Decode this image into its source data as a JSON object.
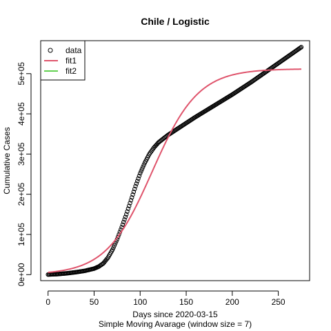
{
  "chart_data": {
    "type": "scatter",
    "title": "Chile / Logistic",
    "xlabel": "Days since 2020-03-15",
    "xlabel_sub": "Simple Moving Avarage (window size = 7)",
    "ylabel": "Cumulative Cases",
    "xlim": [
      -8,
      284
    ],
    "ylim": [
      -15000,
      582000
    ],
    "x_ticks": [
      0,
      50,
      100,
      150,
      200,
      250
    ],
    "x_tick_labels": [
      "0",
      "50",
      "100",
      "150",
      "200",
      "250"
    ],
    "y_ticks": [
      0,
      100000,
      200000,
      300000,
      400000,
      500000
    ],
    "y_tick_labels": [
      "0e+00",
      "1e+05",
      "2e+05",
      "3e+05",
      "4e+05",
      "5e+05"
    ],
    "legend_position": "top-left",
    "legend": [
      {
        "label": "data",
        "style": "circle",
        "color": "#000000"
      },
      {
        "label": "fit1",
        "style": "line",
        "color": "#DF536B"
      },
      {
        "label": "fit2",
        "style": "line",
        "color": "#61D04F"
      }
    ],
    "data_points": {
      "name": "data",
      "x": [
        0,
        10,
        20,
        30,
        40,
        50,
        55,
        60,
        65,
        70,
        75,
        80,
        85,
        90,
        95,
        100,
        105,
        110,
        115,
        120,
        125,
        130,
        140,
        150,
        160,
        170,
        180,
        190,
        200,
        210,
        220,
        230,
        240,
        250,
        260,
        270,
        275
      ],
      "y": [
        200,
        1200,
        3200,
        6000,
        9500,
        15000,
        20000,
        28000,
        42000,
        62000,
        88000,
        118000,
        150000,
        185000,
        220000,
        252000,
        278000,
        300000,
        316000,
        329000,
        338000,
        347000,
        362000,
        377000,
        392000,
        406000,
        420000,
        434000,
        448000,
        463000,
        478000,
        494000,
        510000,
        526000,
        542000,
        558000,
        566000
      ]
    },
    "fit1": {
      "name": "fit1",
      "model": "logistic",
      "K": 512000,
      "r": 0.04,
      "t0": 113,
      "x_range": [
        0,
        275
      ]
    }
  }
}
